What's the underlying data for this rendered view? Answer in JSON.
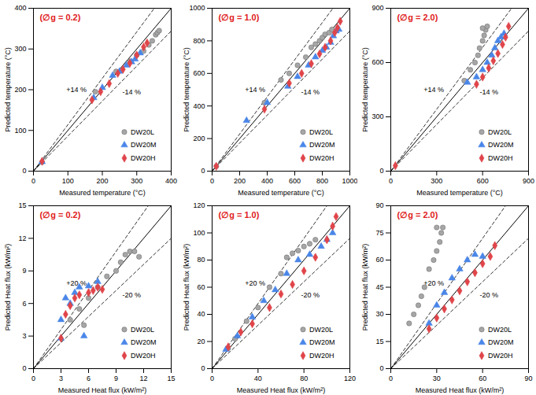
{
  "chart_data": [
    {
      "type": "scatter",
      "title": "(∅g = 0.2)",
      "x_label": "Measured temperature (°C)",
      "y_label": "Predicted temperature (°C)",
      "xlim": [
        0,
        400
      ],
      "ylim": [
        0,
        400
      ],
      "xticks": [
        0,
        100,
        200,
        300,
        400
      ],
      "yticks": [
        0,
        100,
        200,
        300,
        400
      ],
      "legend": "bottom-right",
      "reference_lines": [
        {
          "slope": 1,
          "line_style": "solid"
        },
        {
          "slope": 1.14,
          "label": "+14 %",
          "line_style": "dashed"
        },
        {
          "slope": 0.86,
          "label": "-14 %",
          "line_style": "dashed"
        }
      ],
      "series": [
        {
          "name": "DW20L",
          "color": "#a6a6a6",
          "marker": "circle",
          "values": [
            [
              25,
              22
            ],
            [
              180,
              195
            ],
            [
              240,
              245
            ],
            [
              280,
              270
            ],
            [
              300,
              285
            ],
            [
              320,
              295
            ],
            [
              335,
              310
            ],
            [
              345,
              320
            ],
            [
              355,
              335
            ],
            [
              360,
              340
            ],
            [
              365,
              345
            ]
          ]
        },
        {
          "name": "DW20M",
          "color": "#4a86e8",
          "marker": "triangle",
          "values": [
            [
              25,
              23
            ],
            [
              175,
              180
            ],
            [
              200,
              205
            ],
            [
              230,
              235
            ],
            [
              250,
              245
            ],
            [
              270,
              260
            ],
            [
              285,
              268
            ],
            [
              295,
              275
            ],
            [
              310,
              290
            ]
          ]
        },
        {
          "name": "DW20H",
          "color": "#e0454a",
          "marker": "diamond",
          "values": [
            [
              25,
              24
            ],
            [
              170,
              175
            ],
            [
              195,
              195
            ],
            [
              220,
              215
            ],
            [
              245,
              240
            ],
            [
              260,
              250
            ],
            [
              280,
              265
            ],
            [
              300,
              285
            ],
            [
              320,
              305
            ],
            [
              330,
              315
            ]
          ]
        }
      ]
    },
    {
      "type": "scatter",
      "title": "(∅g = 1.0)",
      "x_label": "Measured temperature (°C)",
      "y_label": "Predicted temperature (°C)",
      "xlim": [
        0,
        1000
      ],
      "ylim": [
        0,
        1000
      ],
      "xticks": [
        0,
        200,
        400,
        600,
        800,
        1000
      ],
      "yticks": [
        0,
        200,
        400,
        600,
        800,
        1000
      ],
      "legend": "bottom-right",
      "reference_lines": [
        {
          "slope": 1,
          "line_style": "solid"
        },
        {
          "slope": 1.14,
          "label": "+14 %",
          "line_style": "dashed"
        },
        {
          "slope": 0.86,
          "label": "-14 %",
          "line_style": "dashed"
        }
      ],
      "series": [
        {
          "name": "DW20L",
          "color": "#a6a6a6",
          "marker": "circle",
          "values": [
            [
              30,
              30
            ],
            [
              380,
              420
            ],
            [
              500,
              560
            ],
            [
              560,
              600
            ],
            [
              620,
              650
            ],
            [
              680,
              700
            ],
            [
              720,
              760
            ],
            [
              750,
              780
            ],
            [
              780,
              800
            ],
            [
              800,
              820
            ],
            [
              820,
              840
            ],
            [
              850,
              850
            ],
            [
              870,
              870
            ]
          ]
        },
        {
          "name": "DW20M",
          "color": "#4a86e8",
          "marker": "triangle",
          "values": [
            [
              250,
              310
            ],
            [
              400,
              420
            ],
            [
              550,
              520
            ],
            [
              620,
              580
            ],
            [
              700,
              650
            ],
            [
              750,
              700
            ],
            [
              800,
              740
            ],
            [
              830,
              760
            ],
            [
              860,
              790
            ],
            [
              880,
              830
            ],
            [
              900,
              860
            ],
            [
              920,
              870
            ]
          ]
        },
        {
          "name": "DW20H",
          "color": "#e0454a",
          "marker": "diamond",
          "values": [
            [
              30,
              30
            ],
            [
              380,
              380
            ],
            [
              560,
              540
            ],
            [
              650,
              600
            ],
            [
              720,
              660
            ],
            [
              780,
              720
            ],
            [
              820,
              760
            ],
            [
              860,
              800
            ],
            [
              890,
              850
            ],
            [
              910,
              880
            ],
            [
              930,
              920
            ]
          ]
        }
      ]
    },
    {
      "type": "scatter",
      "title": "(∅g = 2.0)",
      "x_label": "Measured temperature (°C)",
      "y_label": "Predicted temperature (°C)",
      "xlim": [
        0,
        900
      ],
      "ylim": [
        0,
        900
      ],
      "xticks": [
        0,
        300,
        600,
        900
      ],
      "yticks": [
        0,
        300,
        600,
        900
      ],
      "legend": "bottom-right",
      "reference_lines": [
        {
          "slope": 1,
          "line_style": "solid"
        },
        {
          "slope": 1.14,
          "label": "+14 %",
          "line_style": "dashed"
        },
        {
          "slope": 0.86,
          "label": "-14 %",
          "line_style": "dashed"
        }
      ],
      "series": [
        {
          "name": "DW20L",
          "color": "#a6a6a6",
          "marker": "circle",
          "values": [
            [
              480,
              500
            ],
            [
              520,
              560
            ],
            [
              550,
              600
            ],
            [
              570,
              640
            ],
            [
              580,
              680
            ],
            [
              600,
              720
            ],
            [
              610,
              750
            ],
            [
              620,
              780
            ],
            [
              630,
              800
            ],
            [
              600,
              790
            ]
          ]
        },
        {
          "name": "DW20M",
          "color": "#4a86e8",
          "marker": "triangle",
          "values": [
            [
              500,
              490
            ],
            [
              560,
              520
            ],
            [
              600,
              560
            ],
            [
              630,
              600
            ],
            [
              660,
              640
            ],
            [
              680,
              680
            ],
            [
              700,
              720
            ],
            [
              720,
              740
            ],
            [
              740,
              760
            ]
          ]
        },
        {
          "name": "DW20H",
          "color": "#e0454a",
          "marker": "diamond",
          "values": [
            [
              30,
              30
            ],
            [
              560,
              480
            ],
            [
              600,
              520
            ],
            [
              640,
              570
            ],
            [
              670,
              610
            ],
            [
              700,
              650
            ],
            [
              730,
              700
            ],
            [
              750,
              740
            ],
            [
              770,
              800
            ]
          ]
        }
      ]
    },
    {
      "type": "scatter",
      "title": "(∅g = 0.2)",
      "x_label": "Measured Heat flux (kW/m²)",
      "y_label": "Predicted Heat flux (kW/m²)",
      "xlim": [
        0,
        15
      ],
      "ylim": [
        0,
        15
      ],
      "xticks": [
        0,
        3,
        6,
        9,
        12,
        15
      ],
      "yticks": [
        0,
        3,
        6,
        9,
        12,
        15
      ],
      "legend": "bottom-right",
      "reference_lines": [
        {
          "slope": 1,
          "line_style": "solid"
        },
        {
          "slope": 1.2,
          "label": "+20 %",
          "line_style": "dashed"
        },
        {
          "slope": 0.8,
          "label": "-20 %",
          "line_style": "dashed"
        }
      ],
      "series": [
        {
          "name": "DW20L",
          "color": "#a6a6a6",
          "marker": "circle",
          "values": [
            [
              4,
              4.5
            ],
            [
              5,
              5.5
            ],
            [
              5.5,
              4
            ],
            [
              6,
              6.5
            ],
            [
              7,
              7.5
            ],
            [
              8,
              8.5
            ],
            [
              9,
              9
            ],
            [
              9.5,
              9.8
            ],
            [
              10,
              10.5
            ],
            [
              10.5,
              10.8
            ],
            [
              11,
              10.8
            ],
            [
              11.5,
              10.3
            ]
          ]
        },
        {
          "name": "DW20M",
          "color": "#4a86e8",
          "marker": "triangle",
          "values": [
            [
              3,
              4.5
            ],
            [
              3.5,
              6.5
            ],
            [
              4,
              6
            ],
            [
              4.5,
              7
            ],
            [
              5,
              7.5
            ],
            [
              6,
              7.6
            ],
            [
              7,
              8
            ],
            [
              5.5,
              3
            ],
            [
              3,
              2.8
            ]
          ]
        },
        {
          "name": "DW20H",
          "color": "#e0454a",
          "marker": "diamond",
          "values": [
            [
              3,
              2.8
            ],
            [
              3.5,
              5
            ],
            [
              4,
              5.8
            ],
            [
              4.5,
              6.5
            ],
            [
              5,
              6.8
            ],
            [
              6,
              7
            ],
            [
              6.5,
              7.2
            ],
            [
              7,
              7.5
            ],
            [
              7.5,
              7.3
            ]
          ]
        }
      ]
    },
    {
      "type": "scatter",
      "title": "(∅g = 1.0)",
      "x_label": "Measured Heat flux (kW/m²)",
      "y_label": "Predicted Heat flux (kW/m²)",
      "xlim": [
        0,
        120
      ],
      "ylim": [
        0,
        120
      ],
      "xticks": [
        0,
        40,
        80,
        120
      ],
      "yticks": [
        0,
        20,
        40,
        60,
        80,
        100,
        120
      ],
      "legend": "bottom-right",
      "reference_lines": [
        {
          "slope": 1,
          "line_style": "solid"
        },
        {
          "slope": 1.2,
          "label": "+20 %",
          "line_style": "dashed"
        },
        {
          "slope": 0.8,
          "label": "-20 %",
          "line_style": "dashed"
        }
      ],
      "series": [
        {
          "name": "DW20L",
          "color": "#a6a6a6",
          "marker": "circle",
          "values": [
            [
              14,
              15
            ],
            [
              20,
              22
            ],
            [
              30,
              35
            ],
            [
              40,
              45
            ],
            [
              50,
              60
            ],
            [
              60,
              70
            ],
            [
              65,
              82
            ],
            [
              70,
              85
            ],
            [
              75,
              87
            ],
            [
              80,
              90
            ],
            [
              85,
              92
            ],
            [
              90,
              95
            ]
          ]
        },
        {
          "name": "DW20M",
          "color": "#4a86e8",
          "marker": "triangle",
          "values": [
            [
              12,
              14
            ],
            [
              22,
              24
            ],
            [
              35,
              38
            ],
            [
              45,
              50
            ],
            [
              55,
              58
            ],
            [
              65,
              70
            ],
            [
              75,
              80
            ],
            [
              85,
              84
            ],
            [
              95,
              90
            ],
            [
              100,
              95
            ],
            [
              105,
              100
            ]
          ]
        },
        {
          "name": "DW20H",
          "color": "#e0454a",
          "marker": "diamond",
          "values": [
            [
              14,
              16
            ],
            [
              25,
              27
            ],
            [
              35,
              33
            ],
            [
              50,
              45
            ],
            [
              60,
              55
            ],
            [
              70,
              62
            ],
            [
              80,
              72
            ],
            [
              90,
              82
            ],
            [
              100,
              95
            ],
            [
              105,
              105
            ],
            [
              108,
              112
            ]
          ]
        }
      ]
    },
    {
      "type": "scatter",
      "title": "(∅g = 2.0)",
      "x_label": "Measured Heat flux (kW/m²)",
      "y_label": "Predicted Heat flux (kW/m²)",
      "xlim": [
        0,
        90
      ],
      "ylim": [
        0,
        90
      ],
      "xticks": [
        0,
        30,
        60,
        90
      ],
      "yticks": [
        0,
        15,
        30,
        45,
        60,
        75,
        90
      ],
      "legend": "bottom-right",
      "reference_lines": [
        {
          "slope": 1,
          "line_style": "solid"
        },
        {
          "slope": 1.2,
          "label": "+20 %",
          "line_style": "dashed"
        },
        {
          "slope": 0.8,
          "label": "-20 %",
          "line_style": "dashed"
        }
      ],
      "series": [
        {
          "name": "DW20L",
          "color": "#a6a6a6",
          "marker": "circle",
          "values": [
            [
              12,
              25
            ],
            [
              15,
              30
            ],
            [
              18,
              35
            ],
            [
              20,
              40
            ],
            [
              22,
              45
            ],
            [
              25,
              55
            ],
            [
              28,
              60
            ],
            [
              30,
              65
            ],
            [
              32,
              70
            ],
            [
              33,
              75
            ],
            [
              34,
              78
            ],
            [
              30,
              78
            ]
          ]
        },
        {
          "name": "DW20M",
          "color": "#4a86e8",
          "marker": "triangle",
          "values": [
            [
              25,
              25
            ],
            [
              30,
              35
            ],
            [
              35,
              42
            ],
            [
              40,
              50
            ],
            [
              45,
              55
            ],
            [
              50,
              60
            ],
            [
              55,
              63
            ],
            [
              60,
              62
            ]
          ]
        },
        {
          "name": "DW20H",
          "color": "#e0454a",
          "marker": "diamond",
          "values": [
            [
              25,
              22
            ],
            [
              30,
              28
            ],
            [
              35,
              33
            ],
            [
              40,
              38
            ],
            [
              45,
              43
            ],
            [
              50,
              48
            ],
            [
              55,
              53
            ],
            [
              60,
              58
            ],
            [
              65,
              62
            ],
            [
              68,
              68
            ]
          ]
        }
      ]
    }
  ]
}
